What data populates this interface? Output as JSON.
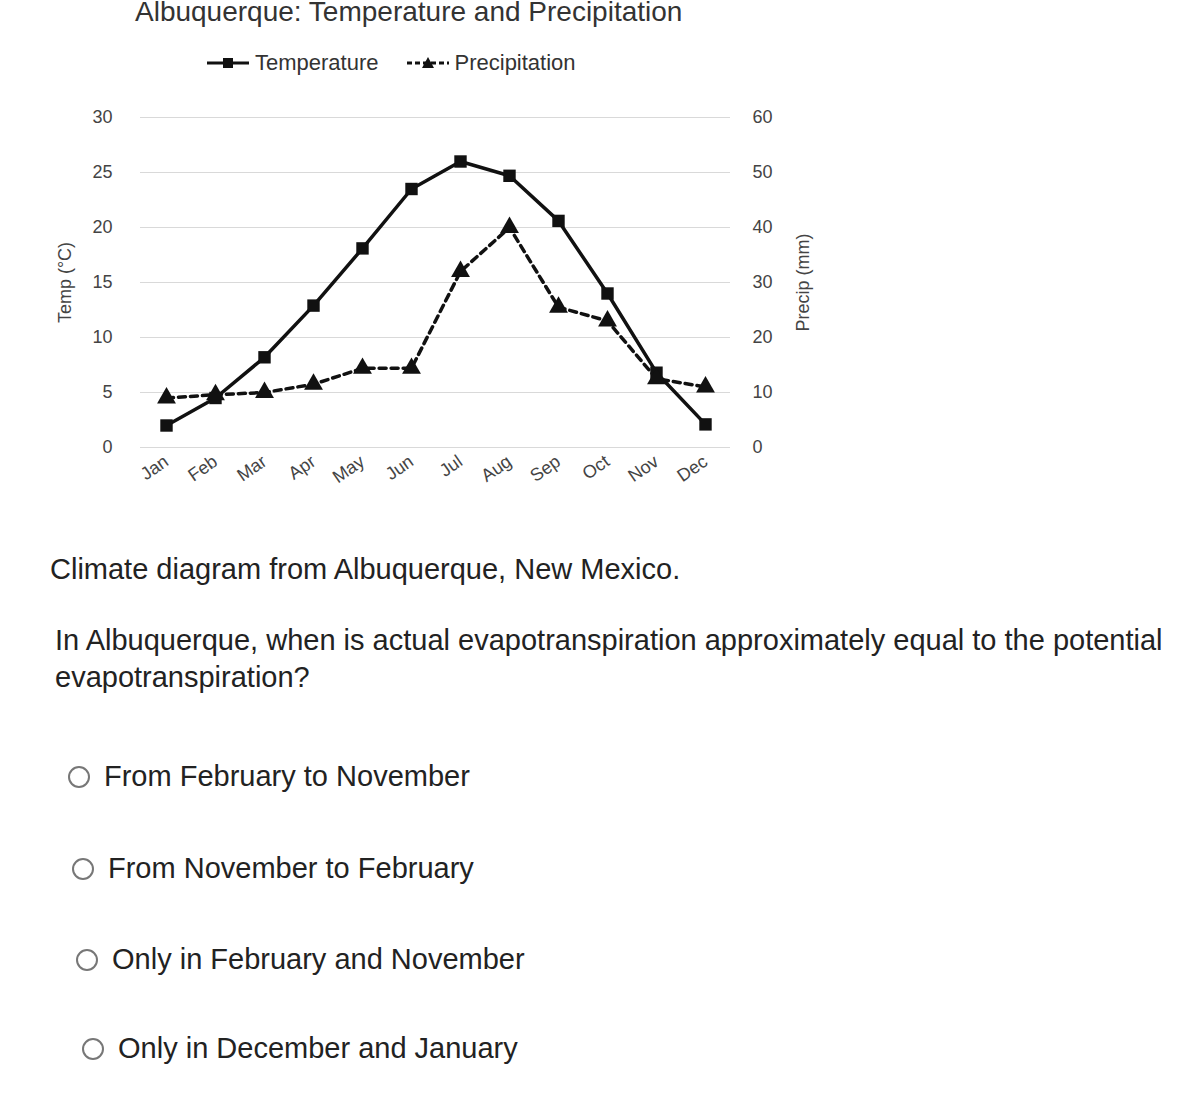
{
  "chart_data": {
    "type": "line",
    "title": "Albuquerque: Temperature and Precipitation",
    "categories": [
      "Jan",
      "Feb",
      "Mar",
      "Apr",
      "May",
      "Jun",
      "Jul",
      "Aug",
      "Sep",
      "Oct",
      "Nov",
      "Dec"
    ],
    "series": [
      {
        "name": "Temperature",
        "color": "#111111",
        "marker": "square",
        "line_style": "solid",
        "values": [
          2,
          4.5,
          8.2,
          12.9,
          18.1,
          23.5,
          26,
          24.7,
          20.6,
          14,
          6.8,
          2.1
        ]
      },
      {
        "name": "Precipitation",
        "color": "#111111",
        "marker": "triangle",
        "line_style": "dashed",
        "axis": "y2",
        "values": [
          9,
          9.6,
          10,
          11.5,
          14.4,
          14.4,
          32,
          40,
          25.5,
          23,
          12.5,
          11
        ]
      }
    ],
    "y_label": "Temp (°C)",
    "y2_label": "Precip (mm)",
    "ylim": [
      0,
      30
    ],
    "yticks": [
      0,
      5,
      10,
      15,
      20,
      25,
      30
    ],
    "y2lim": [
      0,
      60
    ],
    "y2ticks": [
      0,
      10,
      20,
      30,
      40,
      50,
      60
    ],
    "grid": true,
    "legend": "top"
  },
  "caption": "Climate diagram from Albuquerque, New Mexico.",
  "question": "In Albuquerque, when is actual evapotranspiration approximately equal to the potential evapotranspiration?",
  "options": [
    "From February to November",
    "From November to February",
    "Only in February and November",
    "Only in December and January"
  ]
}
